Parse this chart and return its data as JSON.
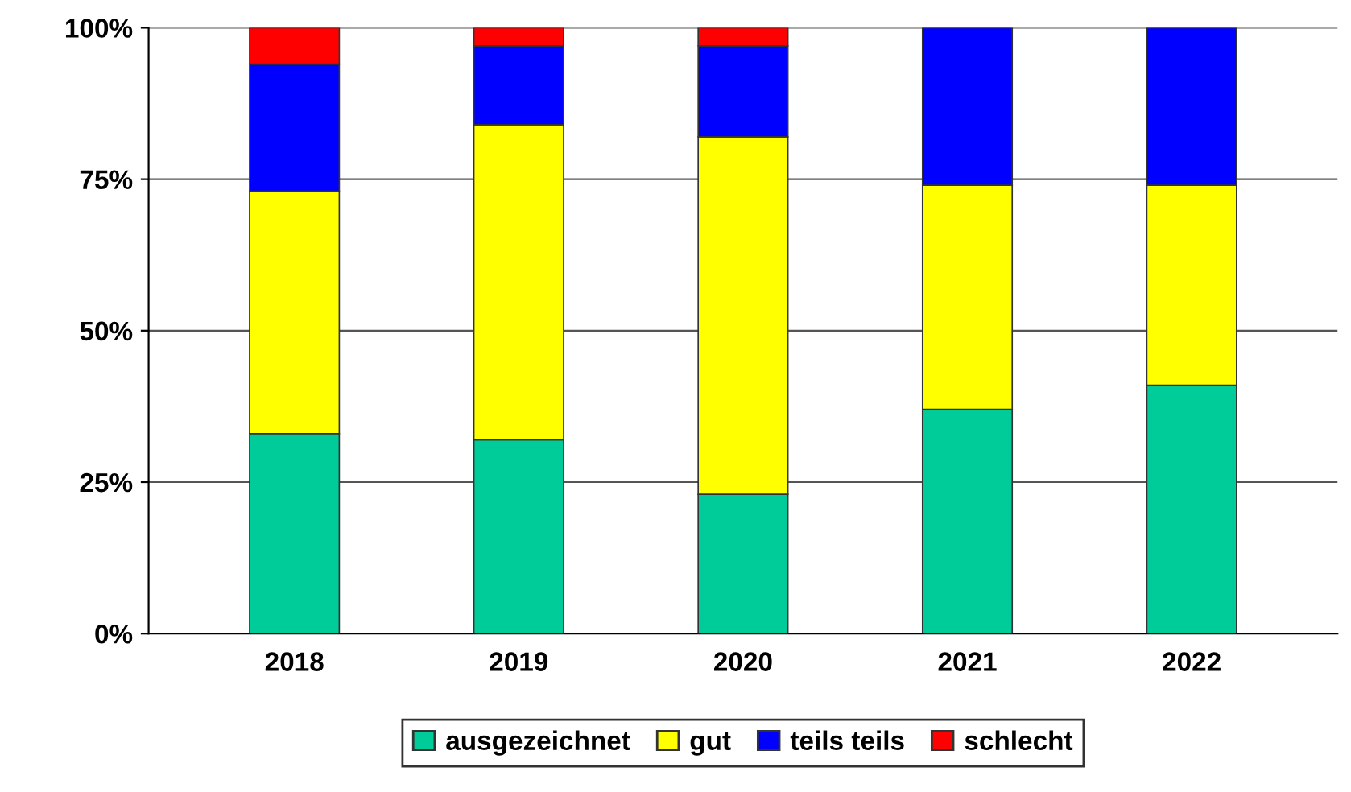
{
  "chart_data": {
    "type": "bar",
    "stacked": true,
    "categories": [
      "2018",
      "2019",
      "2020",
      "2021",
      "2022"
    ],
    "series": [
      {
        "name": "ausgezeichnet",
        "color": "#00cc99",
        "values": [
          33,
          32,
          23,
          37,
          41
        ]
      },
      {
        "name": "gut",
        "color": "#ffff00",
        "values": [
          40,
          52,
          59,
          37,
          33
        ]
      },
      {
        "name": "teils teils",
        "color": "#0000ff",
        "values": [
          21,
          13,
          15,
          26,
          26
        ]
      },
      {
        "name": "schlecht",
        "color": "#ff0000",
        "values": [
          6,
          3,
          3,
          null,
          null
        ]
      }
    ],
    "ylim": [
      0,
      100
    ],
    "yticks": [
      {
        "value": 0,
        "label": "0%"
      },
      {
        "value": 25,
        "label": "25%"
      },
      {
        "value": 50,
        "label": "50%"
      },
      {
        "value": 75,
        "label": "75%"
      },
      {
        "value": 100,
        "label": "100%"
      }
    ],
    "grid": "y",
    "legend": "bottom"
  }
}
